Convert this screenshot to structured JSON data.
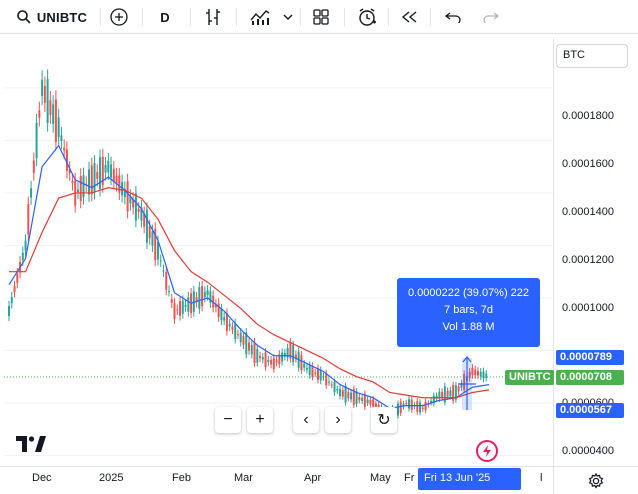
{
  "toolbar": {
    "symbol": "UNIBTC",
    "interval": "D",
    "icons": [
      "search-icon",
      "add-symbol-icon",
      "bar-type-icon",
      "indicators-icon",
      "chevron-down-icon",
      "layout-icon",
      "alert-icon",
      "replay-icon",
      "undo-icon",
      "redo-icon"
    ]
  },
  "price_axis": {
    "currency": "BTC",
    "ticks": [
      "0.0001800",
      "0.0001600",
      "0.0001400",
      "0.0001200",
      "0.0001000",
      "0.0000600",
      "0.0000400"
    ],
    "tags": {
      "high": "0.0000789",
      "current": "0.0000708",
      "low": "0.0000567"
    },
    "symbol_tag": "UNIBTC",
    "colors": {
      "high": "#2962ff",
      "current": "#4caf50",
      "low": "#2962ff"
    }
  },
  "time_axis": {
    "labels": [
      "Dec",
      "2025",
      "Feb",
      "Mar",
      "Apr",
      "May",
      "Fr",
      "l"
    ],
    "crosshair_date": "Fri 13 Jun '25"
  },
  "tooltip": {
    "line1": "0.0000222 (39.07%) 222",
    "line2": "7 bars, 7d",
    "line3": "Vol 1.88 M"
  },
  "nav": {
    "buttons": [
      "−",
      "+",
      "‹",
      "›",
      "↻"
    ]
  },
  "chart_data": {
    "type": "line",
    "ylim": [
      3.6e-05,
      0.000199
    ],
    "x": [
      "Nov 25",
      "Dec 1",
      "Dec 8",
      "Dec 15",
      "Dec 22",
      "Dec 29",
      "Jan 5",
      "Jan 12",
      "Jan 19",
      "Jan 26",
      "Feb 2",
      "Feb 9",
      "Feb 16",
      "Feb 23",
      "Mar 2",
      "Mar 9",
      "Mar 16",
      "Mar 23",
      "Mar 30",
      "Apr 6",
      "Apr 13",
      "Apr 20",
      "Apr 27",
      "May 4",
      "May 11",
      "May 18",
      "May 25",
      "Jun 1",
      "Jun 8",
      "Jun 15"
    ],
    "series": [
      {
        "values": [
          9.5e-05,
          0.00012,
          0.00018,
          0.000165,
          0.00014,
          0.000145,
          0.00015,
          0.00014,
          0.000132,
          0.000118,
          9.5e-05,
          9.8e-05,
          0.000102,
          9.2e-05,
          8.5e-05,
          7.8e-05,
          7.5e-05,
          8e-05,
          7.3e-05,
          7e-05,
          6.4e-05,
          6.2e-05,
          6e-05,
          5.5e-05,
          6e-05,
          5.8e-05,
          6.3e-05,
          6.4e-05,
          7.2e-05,
          7e-05
        ]
      },
      {
        "values": [
          0.000105,
          0.000115,
          0.00015,
          0.000158,
          0.000145,
          0.000142,
          0.000146,
          0.000141,
          0.000134,
          0.000122,
          0.000102,
          9.8e-05,
          0.0001,
          9.5e-05,
          8.8e-05,
          8.2e-05,
          7.8e-05,
          7.8e-05,
          7.5e-05,
          7.2e-05,
          6.7e-05,
          6.4e-05,
          6.2e-05,
          5.8e-05,
          5.9e-05,
          5.9e-05,
          6.1e-05,
          6.2e-05,
          6.6e-05,
          6.7e-05
        ]
      },
      {
        "values": [
          0.00011,
          0.00011,
          0.000125,
          0.000138,
          0.00014,
          0.00014,
          0.000142,
          0.000141,
          0.000138,
          0.00013,
          0.000118,
          0.00011,
          0.000106,
          0.000101,
          9.6e-05,
          9e-05,
          8.6e-05,
          8.3e-05,
          8e-05,
          7.7e-05,
          7.3e-05,
          7e-05,
          6.8e-05,
          6.4e-05,
          6.3e-05,
          6.2e-05,
          6.2e-05,
          6.2e-05,
          6.4e-05,
          6.5e-05
        ]
      }
    ]
  }
}
